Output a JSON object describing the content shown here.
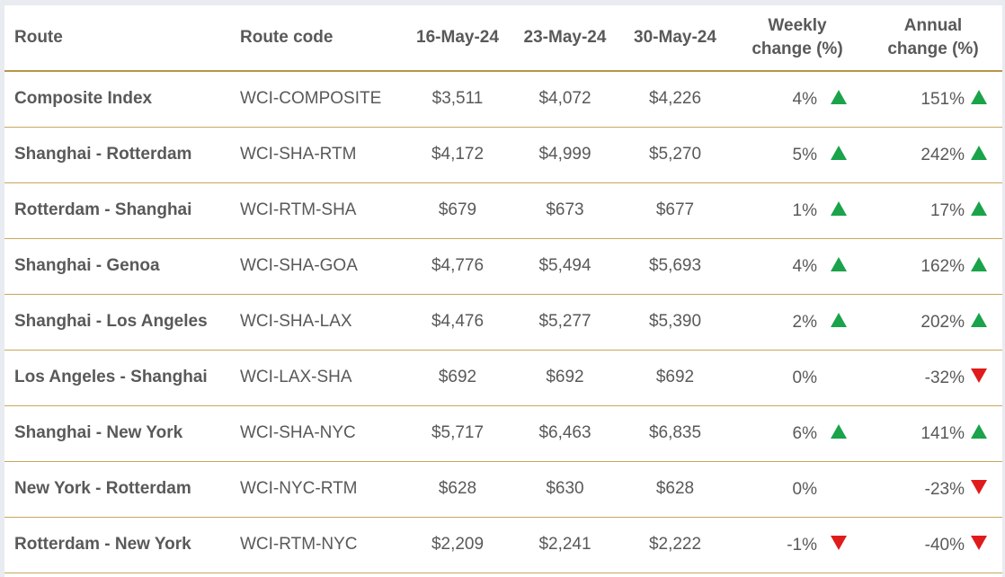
{
  "headers": {
    "route": "Route",
    "route_code": "Route code",
    "date1": "16-May-24",
    "date2": "23-May-24",
    "date3": "30-May-24",
    "weekly_line1": "Weekly",
    "weekly_line2": "change (%)",
    "annual_line1": "Annual",
    "annual_line2": "change (%)"
  },
  "colors": {
    "up": "#1aa34a",
    "down": "#e01b1b",
    "rule": "#c9a65c"
  },
  "rows": [
    {
      "route": "Composite Index",
      "code": "WCI-COMPOSITE",
      "d1": "$3,511",
      "d2": "$4,072",
      "d3": "$4,226",
      "weekly": "4%",
      "weekly_dir": "up",
      "annual": "151%",
      "annual_dir": "up"
    },
    {
      "route": "Shanghai - Rotterdam",
      "code": "WCI-SHA-RTM",
      "d1": "$4,172",
      "d2": "$4,999",
      "d3": "$5,270",
      "weekly": "5%",
      "weekly_dir": "up",
      "annual": "242%",
      "annual_dir": "up"
    },
    {
      "route": "Rotterdam - Shanghai",
      "code": "WCI-RTM-SHA",
      "d1": "$679",
      "d2": "$673",
      "d3": "$677",
      "weekly": "1%",
      "weekly_dir": "up",
      "annual": "17%",
      "annual_dir": "up"
    },
    {
      "route": "Shanghai - Genoa",
      "code": "WCI-SHA-GOA",
      "d1": "$4,776",
      "d2": "$5,494",
      "d3": "$5,693",
      "weekly": "4%",
      "weekly_dir": "up",
      "annual": "162%",
      "annual_dir": "up"
    },
    {
      "route": "Shanghai - Los Angeles",
      "code": "WCI-SHA-LAX",
      "d1": "$4,476",
      "d2": "$5,277",
      "d3": "$5,390",
      "weekly": "2%",
      "weekly_dir": "up",
      "annual": "202%",
      "annual_dir": "up"
    },
    {
      "route": "Los Angeles - Shanghai",
      "code": "WCI-LAX-SHA",
      "d1": "$692",
      "d2": "$692",
      "d3": "$692",
      "weekly": "0%",
      "weekly_dir": "none",
      "annual": "-32%",
      "annual_dir": "down"
    },
    {
      "route": "Shanghai - New York",
      "code": "WCI-SHA-NYC",
      "d1": "$5,717",
      "d2": "$6,463",
      "d3": "$6,835",
      "weekly": "6%",
      "weekly_dir": "up",
      "annual": "141%",
      "annual_dir": "up"
    },
    {
      "route": "New York - Rotterdam",
      "code": "WCI-NYC-RTM",
      "d1": "$628",
      "d2": "$630",
      "d3": "$628",
      "weekly": "0%",
      "weekly_dir": "none",
      "annual": "-23%",
      "annual_dir": "down"
    },
    {
      "route": "Rotterdam - New York",
      "code": "WCI-RTM-NYC",
      "d1": "$2,209",
      "d2": "$2,241",
      "d3": "$2,222",
      "weekly": "-1%",
      "weekly_dir": "down",
      "annual": "-40%",
      "annual_dir": "down"
    }
  ]
}
